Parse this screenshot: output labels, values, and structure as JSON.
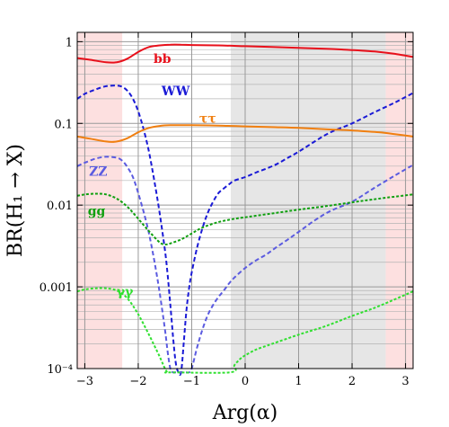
{
  "chart_data": {
    "type": "line",
    "xlabel": "Arg(α)",
    "ylabel": "BR(H₁ → X)",
    "xlim": [
      -3.14159,
      3.14159
    ],
    "ylim": [
      0.0001,
      1.3
    ],
    "y_scale": "log",
    "grid": true,
    "x_ticks": [
      -3,
      -2,
      -1,
      0,
      1,
      2,
      3
    ],
    "x_tick_labels": [
      "−3",
      "−2",
      "−1",
      "0",
      "1",
      "2",
      "3"
    ],
    "y_ticks": [
      0.0001,
      0.001,
      0.01,
      0.1,
      1
    ],
    "y_tick_labels": [
      "10⁻⁴",
      "0.001",
      "0.01",
      "0.1",
      "1"
    ],
    "shaded_regions": [
      {
        "x_start": -3.14159,
        "x_end": -2.3,
        "color": "#fde0e0"
      },
      {
        "x_start": -0.27,
        "x_end": 2.63,
        "color": "#e6e6e6"
      },
      {
        "x_start": 2.63,
        "x_end": 3.14159,
        "color": "#fde0e0"
      }
    ],
    "series": [
      {
        "name": "bb",
        "color": "#e8101b",
        "dash": "solid",
        "label_at": [
          -1.55,
          0.62
        ],
        "x": [
          -3.14,
          -2.9,
          -2.6,
          -2.4,
          -2.2,
          -2.0,
          -1.8,
          -1.6,
          -1.4,
          -1.2,
          -1.0,
          -0.5,
          0.0,
          0.5,
          1.0,
          1.5,
          2.0,
          2.5,
          2.8,
          3.14
        ],
        "y": [
          0.63,
          0.6,
          0.56,
          0.56,
          0.62,
          0.75,
          0.86,
          0.9,
          0.92,
          0.92,
          0.91,
          0.9,
          0.88,
          0.86,
          0.84,
          0.82,
          0.79,
          0.75,
          0.71,
          0.65
        ]
      },
      {
        "name": "WW",
        "color": "#1a1ad6",
        "dash": "5,3",
        "label_at": [
          -1.3,
          0.25
        ],
        "x": [
          -3.14,
          -3.0,
          -2.8,
          -2.6,
          -2.4,
          -2.3,
          -2.2,
          -2.1,
          -2.0,
          -1.9,
          -1.8,
          -1.7,
          -1.6,
          -1.5,
          -1.45,
          -1.4,
          -1.35,
          -1.3,
          -1.25,
          -1.2,
          -1.15,
          -1.1,
          -1.05,
          -1.0,
          -0.9,
          -0.8,
          -0.7,
          -0.6,
          -0.5,
          -0.4,
          -0.3,
          -0.2,
          0.0,
          0.2,
          0.4,
          0.6,
          0.8,
          1.0,
          1.3,
          1.6,
          2.0,
          2.4,
          2.8,
          3.14
        ],
        "y": [
          0.2,
          0.23,
          0.26,
          0.285,
          0.29,
          0.28,
          0.25,
          0.2,
          0.14,
          0.085,
          0.045,
          0.02,
          0.008,
          0.0028,
          0.0014,
          0.0006,
          0.00025,
          0.00012,
          9e-05,
          9e-05,
          0.0002,
          0.0005,
          0.00095,
          0.0015,
          0.003,
          0.0052,
          0.008,
          0.011,
          0.014,
          0.016,
          0.018,
          0.02,
          0.022,
          0.025,
          0.028,
          0.032,
          0.038,
          0.045,
          0.06,
          0.078,
          0.1,
          0.135,
          0.18,
          0.235
        ]
      },
      {
        "name": "ττ",
        "color": "#f07f10",
        "dash": "solid",
        "label_at": [
          -0.7,
          0.116
        ],
        "x": [
          -3.14,
          -2.9,
          -2.6,
          -2.4,
          -2.2,
          -2.0,
          -1.8,
          -1.6,
          -1.4,
          -1.2,
          -1.0,
          -0.5,
          0.0,
          0.5,
          1.0,
          1.5,
          2.0,
          2.5,
          2.8,
          3.14
        ],
        "y": [
          0.069,
          0.065,
          0.06,
          0.06,
          0.066,
          0.078,
          0.088,
          0.093,
          0.095,
          0.095,
          0.095,
          0.094,
          0.092,
          0.09,
          0.088,
          0.085,
          0.082,
          0.078,
          0.074,
          0.069
        ]
      },
      {
        "name": "ZZ",
        "color": "#5b5be0",
        "dash": "5,3",
        "label_at": [
          -2.75,
          0.026
        ],
        "x": [
          -3.14,
          -3.0,
          -2.8,
          -2.6,
          -2.4,
          -2.3,
          -2.2,
          -2.1,
          -2.0,
          -1.9,
          -1.8,
          -1.7,
          -1.6,
          -1.5,
          -1.45,
          -1.4,
          -1.35,
          -1.3,
          -1.25,
          -1.2,
          -1.15,
          -1.1,
          -1.05,
          -1.0,
          -0.9,
          -0.8,
          -0.7,
          -0.6,
          -0.5,
          -0.4,
          -0.3,
          -0.2,
          0.0,
          0.2,
          0.4,
          0.6,
          0.8,
          1.0,
          1.3,
          1.6,
          2.0,
          2.4,
          2.8,
          3.14
        ],
        "y": [
          0.03,
          0.033,
          0.037,
          0.039,
          0.038,
          0.035,
          0.029,
          0.022,
          0.014,
          0.0083,
          0.0045,
          0.0021,
          0.00085,
          0.0003,
          0.00016,
          0.0001,
          9e-05,
          9e-05,
          9e-05,
          9e-05,
          9e-05,
          9e-05,
          9e-05,
          0.0001,
          0.00018,
          0.0003,
          0.00045,
          0.0006,
          0.00075,
          0.0009,
          0.0011,
          0.0013,
          0.0017,
          0.0021,
          0.0025,
          0.0031,
          0.0038,
          0.0047,
          0.0065,
          0.0085,
          0.011,
          0.016,
          0.023,
          0.031
        ]
      },
      {
        "name": "gg",
        "color": "#10a010",
        "dash": "3,2",
        "label_at": [
          -2.78,
          0.0085
        ],
        "x": [
          -3.14,
          -3.0,
          -2.8,
          -2.6,
          -2.4,
          -2.2,
          -2.0,
          -1.8,
          -1.6,
          -1.5,
          -1.4,
          -1.2,
          -1.0,
          -0.8,
          -0.5,
          -0.2,
          0.0,
          0.5,
          1.0,
          1.5,
          2.0,
          2.5,
          3.14
        ],
        "y": [
          0.013,
          0.0135,
          0.0138,
          0.0135,
          0.012,
          0.0095,
          0.0068,
          0.0048,
          0.0035,
          0.0033,
          0.0034,
          0.0038,
          0.0045,
          0.0053,
          0.0062,
          0.0068,
          0.0071,
          0.0079,
          0.0088,
          0.0097,
          0.0108,
          0.012,
          0.0135
        ]
      },
      {
        "name": "γγ",
        "color": "#30e030",
        "dash": "3,2",
        "label_at": [
          -2.25,
          0.00088
        ],
        "x": [
          -3.14,
          -3.0,
          -2.8,
          -2.6,
          -2.4,
          -2.2,
          -2.0,
          -1.8,
          -1.6,
          -1.5,
          -1.45,
          -1.4,
          -0.28,
          -0.2,
          -0.1,
          0.0,
          0.2,
          0.5,
          1.0,
          1.5,
          2.0,
          2.5,
          3.14
        ],
        "y": [
          0.00088,
          0.00093,
          0.00096,
          0.00096,
          0.0009,
          0.00072,
          0.00046,
          0.00026,
          0.00014,
          0.0001,
          9e-05,
          9e-05,
          9e-05,
          0.00011,
          0.00013,
          0.000145,
          0.00017,
          0.0002,
          0.00026,
          0.00033,
          0.00044,
          0.00058,
          0.00088
        ]
      }
    ]
  }
}
